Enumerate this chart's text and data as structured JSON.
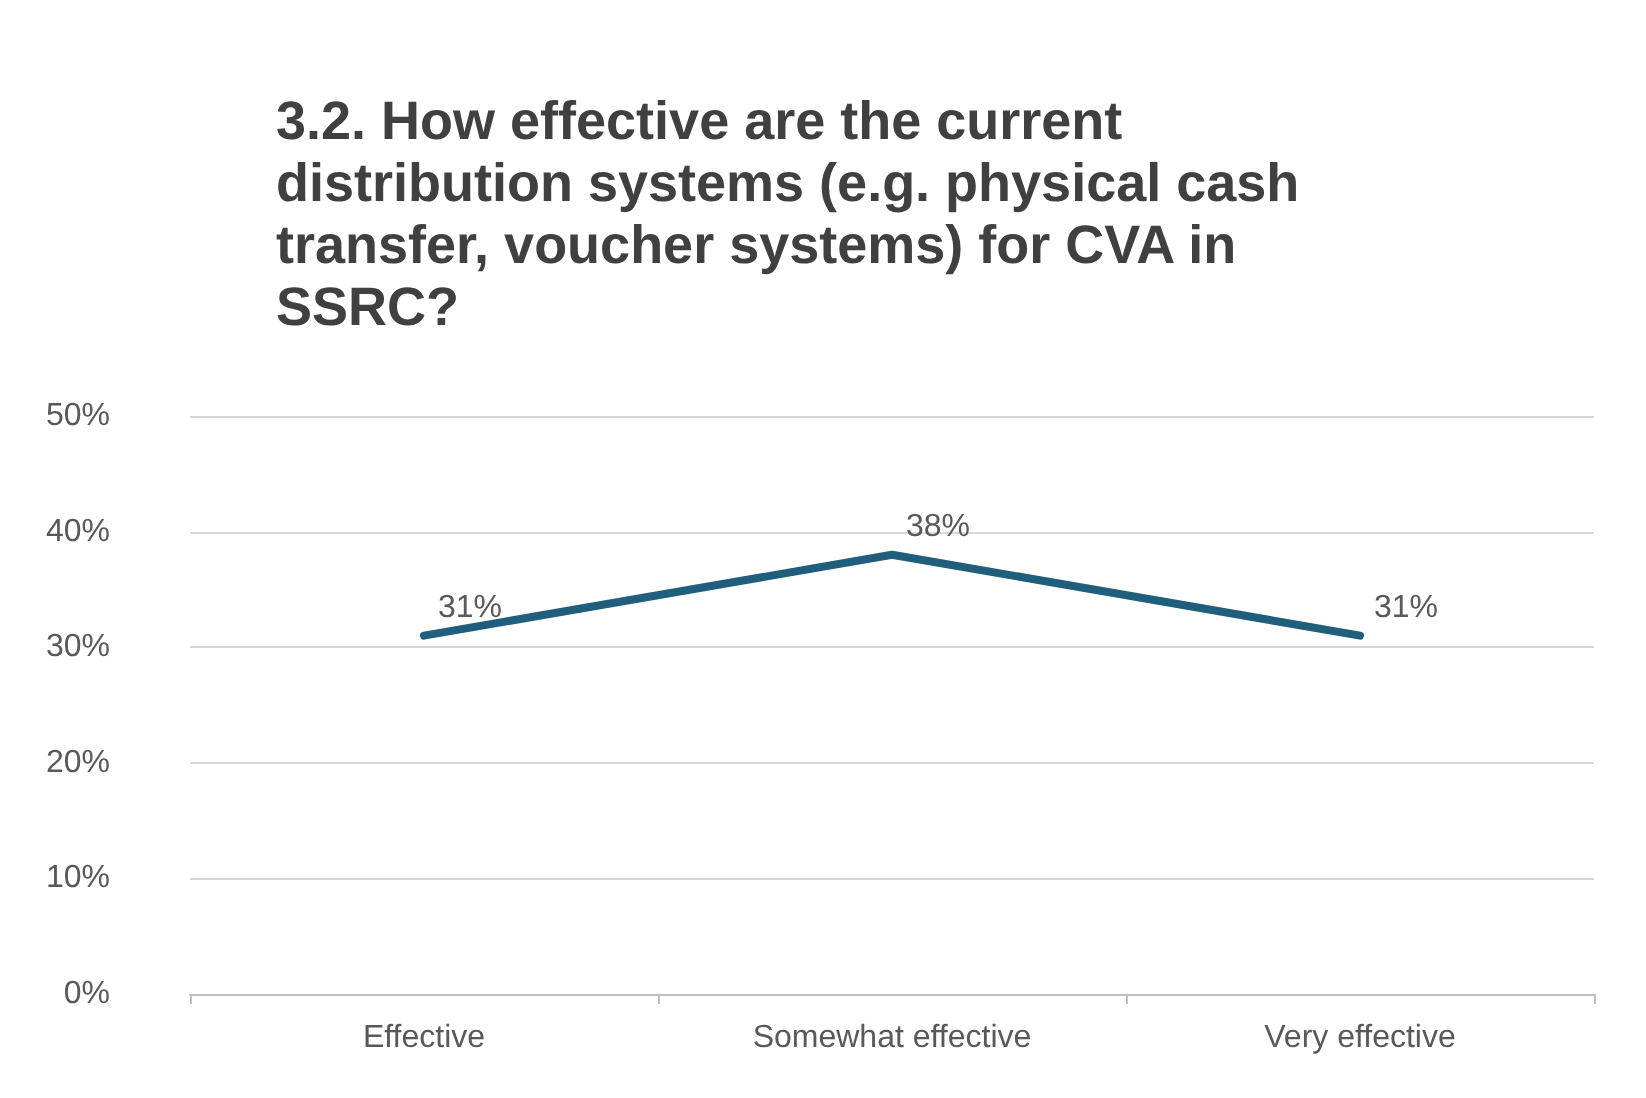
{
  "chart_data": {
    "type": "line",
    "title": "3.2. How effective are the current distribution systems (e.g. physical cash transfer, voucher systems) for CVA in SSRC?",
    "categories": [
      "Effective",
      "Somewhat effective",
      "Very effective"
    ],
    "series": [
      {
        "color": "#1f5f7c",
        "values": [
          31,
          38,
          31
        ],
        "value_labels": [
          "31%",
          "38%",
          "31%"
        ]
      }
    ],
    "ylim": [
      0,
      50
    ],
    "yticks": [
      {
        "value": 0,
        "label": "0%"
      },
      {
        "value": 10,
        "label": "10%"
      },
      {
        "value": 20,
        "label": "20%"
      },
      {
        "value": 30,
        "label": "30%"
      },
      {
        "value": 40,
        "label": "40%"
      },
      {
        "value": 50,
        "label": "50%"
      }
    ],
    "grid": "y",
    "marker": "none",
    "line_style": "solid"
  }
}
